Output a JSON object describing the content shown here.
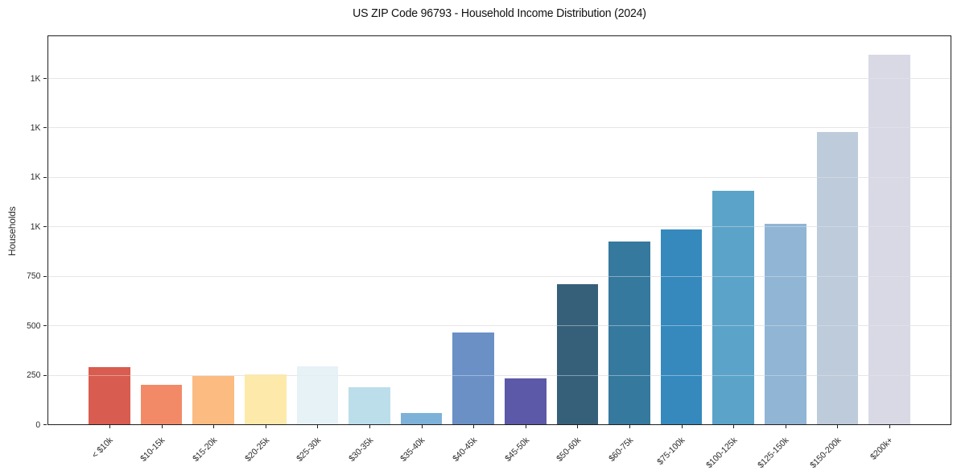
{
  "chart_data": {
    "type": "bar",
    "title": "US ZIP Code 96793 - Household Income Distribution (2024)",
    "xlabel": "",
    "ylabel": "Households",
    "categories": [
      "< $10k",
      "$10-15k",
      "$15-20k",
      "$20-25k",
      "$25-30k",
      "$30-35k",
      "$35-40k",
      "$40-45k",
      "$45-50k",
      "$50-60k",
      "$60-75k",
      "$75-100k",
      "$100-125k",
      "$125-150k",
      "$150-200k",
      "$200k+"
    ],
    "values": [
      290,
      201,
      244,
      252,
      295,
      186,
      57,
      466,
      232,
      710,
      926,
      985,
      1180,
      1013,
      1476,
      1870
    ],
    "bar_colors": [
      "#d85c4f",
      "#f28a68",
      "#fcbb80",
      "#fde9a9",
      "#e7f2f6",
      "#bcdeea",
      "#7db1d8",
      "#6a90c6",
      "#5c59a9",
      "#36607a",
      "#36799e",
      "#3589bd",
      "#5ba3c9",
      "#90b5d5",
      "#bdcbdb",
      "#d8d9e5"
    ],
    "yticks": [
      {
        "value": 0,
        "label": "0"
      },
      {
        "value": 250,
        "label": "250"
      },
      {
        "value": 500,
        "label": "500"
      },
      {
        "value": 750,
        "label": "750"
      },
      {
        "value": 1000,
        "label": "1K"
      },
      {
        "value": 1250,
        "label": "1K"
      },
      {
        "value": 1500,
        "label": "1K"
      },
      {
        "value": 1750,
        "label": "1K"
      }
    ],
    "ylim": [
      0,
      1970
    ],
    "grid": "horizontal",
    "legend": "none"
  },
  "colors": {
    "background": "#ffffff",
    "spine": "#1f1f1f",
    "gridline": "#e6e6e8",
    "tick_text": "#2b2b2b",
    "title_text": "#111111"
  }
}
